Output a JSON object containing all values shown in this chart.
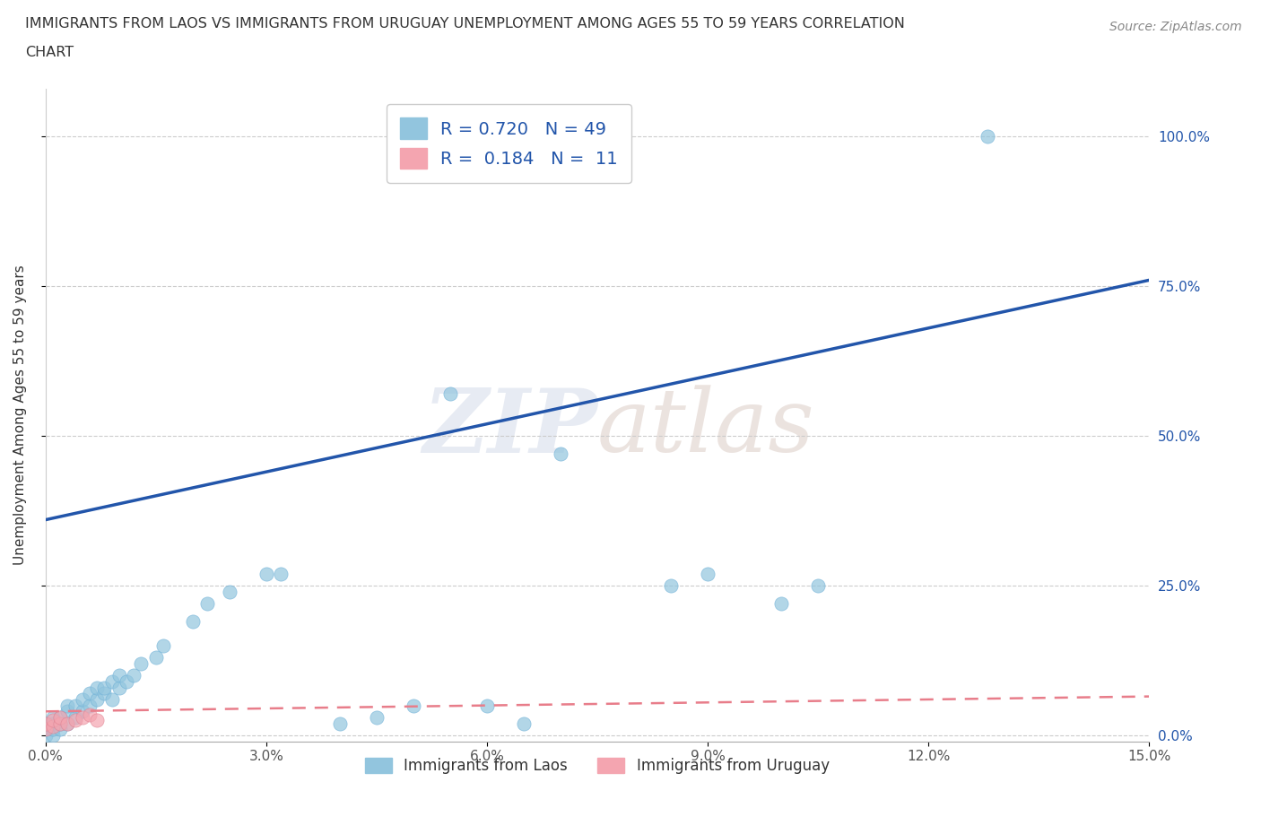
{
  "title_line1": "IMMIGRANTS FROM LAOS VS IMMIGRANTS FROM URUGUAY UNEMPLOYMENT AMONG AGES 55 TO 59 YEARS CORRELATION",
  "title_line2": "CHART",
  "source": "Source: ZipAtlas.com",
  "ylabel": "Unemployment Among Ages 55 to 59 years",
  "watermark": "ZIPatlas",
  "xlim": [
    0.0,
    0.15
  ],
  "ylim": [
    -0.01,
    1.08
  ],
  "xticks": [
    0.0,
    0.03,
    0.06,
    0.09,
    0.12,
    0.15
  ],
  "xtick_labels": [
    "0.0%",
    "3.0%",
    "6.0%",
    "9.0%",
    "12.0%",
    "15.0%"
  ],
  "yticks": [
    0.0,
    0.25,
    0.5,
    0.75,
    1.0
  ],
  "ytick_labels_right": [
    "0.0%",
    "25.0%",
    "50.0%",
    "75.0%",
    "100.0%"
  ],
  "laos_color": "#92C5DE",
  "laos_edge_color": "#6aaed6",
  "uruguay_color": "#F4A5B0",
  "uruguay_edge_color": "#e08090",
  "trend_laos_color": "#2255AA",
  "trend_uruguay_color": "#E87D8A",
  "legend_text_color": "#2255AA",
  "laos_R": 0.72,
  "laos_N": 49,
  "uruguay_R": 0.184,
  "uruguay_N": 11,
  "laos_x": [
    0.0,
    0.0,
    0.0,
    0.001,
    0.001,
    0.001,
    0.001,
    0.002,
    0.002,
    0.002,
    0.003,
    0.003,
    0.003,
    0.004,
    0.004,
    0.005,
    0.005,
    0.006,
    0.006,
    0.007,
    0.007,
    0.008,
    0.008,
    0.009,
    0.009,
    0.01,
    0.01,
    0.011,
    0.012,
    0.013,
    0.015,
    0.016,
    0.02,
    0.022,
    0.025,
    0.03,
    0.032,
    0.04,
    0.045,
    0.05,
    0.055,
    0.06,
    0.065,
    0.07,
    0.085,
    0.09,
    0.1,
    0.105,
    0.128
  ],
  "laos_y": [
    0.0,
    0.01,
    0.02,
    0.0,
    0.01,
    0.02,
    0.03,
    0.01,
    0.02,
    0.03,
    0.02,
    0.04,
    0.05,
    0.03,
    0.05,
    0.04,
    0.06,
    0.05,
    0.07,
    0.06,
    0.08,
    0.07,
    0.08,
    0.06,
    0.09,
    0.08,
    0.1,
    0.09,
    0.1,
    0.12,
    0.13,
    0.15,
    0.19,
    0.22,
    0.24,
    0.27,
    0.27,
    0.02,
    0.03,
    0.05,
    0.57,
    0.05,
    0.02,
    0.47,
    0.25,
    0.27,
    0.22,
    0.25,
    1.0
  ],
  "uruguay_x": [
    0.0,
    0.0,
    0.001,
    0.001,
    0.002,
    0.002,
    0.003,
    0.004,
    0.005,
    0.006,
    0.007
  ],
  "uruguay_y": [
    0.01,
    0.02,
    0.015,
    0.025,
    0.02,
    0.03,
    0.02,
    0.025,
    0.03,
    0.035,
    0.025
  ],
  "trend_laos_x0": 0.0,
  "trend_laos_y0": 0.36,
  "trend_laos_x1": 0.15,
  "trend_laos_y1": 0.76,
  "trend_uruguay_y0": 0.04,
  "trend_uruguay_y1": 0.065,
  "background_color": "#ffffff",
  "grid_color": "#cccccc",
  "tick_label_color": "#555555"
}
